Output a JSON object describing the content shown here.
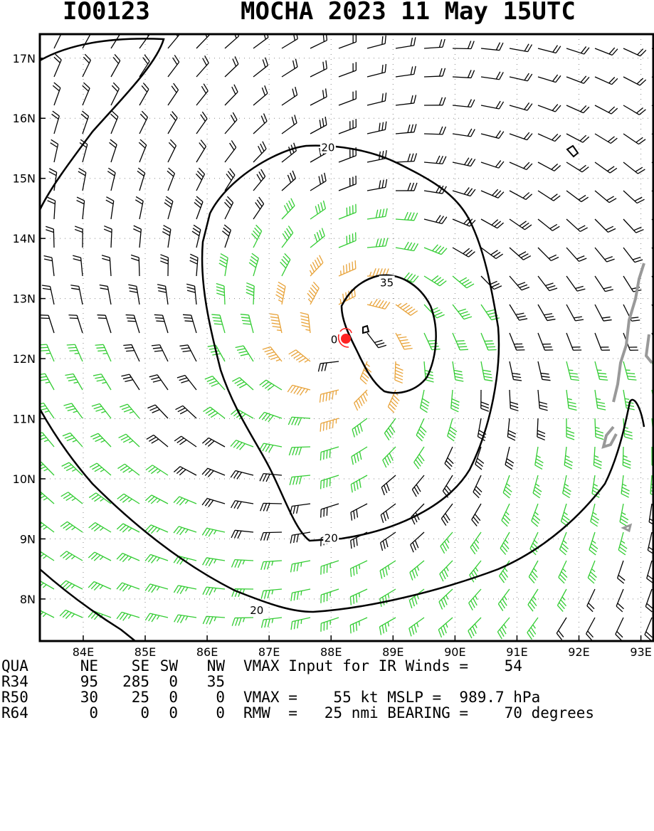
{
  "title": {
    "storm_id": "IO0123",
    "storm_info": "MOCHA 2023 11 May 15UTC"
  },
  "chart_data": {
    "type": "wind-barb-map",
    "x_ticks": [
      "84E",
      "85E",
      "86E",
      "87E",
      "88E",
      "89E",
      "90E",
      "91E",
      "92E",
      "93E"
    ],
    "y_ticks": [
      "8N",
      "9N",
      "10N",
      "11N",
      "12N",
      "13N",
      "14N",
      "15N",
      "16N",
      "17N"
    ],
    "xlim": [
      83.3,
      93.2
    ],
    "ylim": [
      7.3,
      17.4
    ],
    "grid": "dotted",
    "center": {
      "lon": 88.2,
      "lat": 12.3
    },
    "colors": {
      "under_34kt": "#000000",
      "34_to_49kt": "#33cc33",
      "50_to_63kt": "#e8a33a",
      "center_marker": "#ff2222",
      "contour": "#000000",
      "coastline": "#999999"
    },
    "contour_labels": [
      {
        "text": "20",
        "lon": 87.95,
        "lat": 15.5
      },
      {
        "text": "35",
        "lon": 88.9,
        "lat": 13.25
      },
      {
        "text": "0",
        "lon": 88.05,
        "lat": 12.3
      },
      {
        "text": "20",
        "lon": 88.0,
        "lat": 9.0
      },
      {
        "text": "20",
        "lon": 86.8,
        "lat": 7.8
      }
    ]
  },
  "table": {
    "header": [
      "QUA",
      "NE",
      "SE",
      "SW",
      "NW"
    ],
    "rows": [
      [
        "R34",
        "95",
        "285",
        "0",
        "35"
      ],
      [
        "R50",
        "30",
        "25",
        "0",
        "0"
      ],
      [
        "R64",
        "0",
        "0",
        "0",
        "0"
      ]
    ],
    "vmax_input": "VMAX Input for IR Winds =    54",
    "vmax_line": "VMAX =    55 kt MSLP =  989.7 hPa",
    "rmw_line": "RMW  =   25 nmi BEARING =    70 degrees"
  }
}
